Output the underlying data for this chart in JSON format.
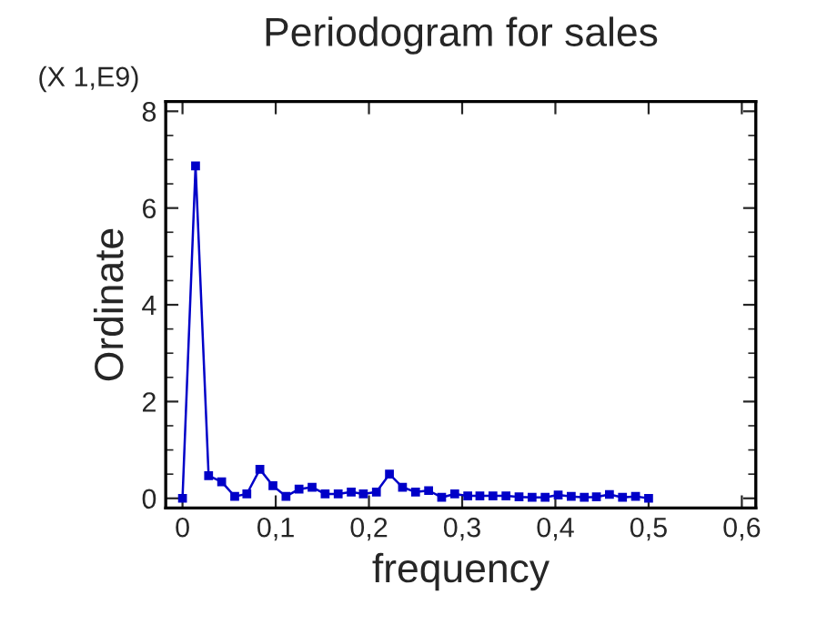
{
  "chart_data": {
    "type": "line",
    "title": "Periodogram for sales",
    "xlabel": "frequency",
    "ylabel": "Ordinate",
    "annotations": [
      "(X 1,E9)"
    ],
    "x": [
      0,
      0.014,
      0.028,
      0.042,
      0.056,
      0.069,
      0.083,
      0.097,
      0.111,
      0.125,
      0.139,
      0.153,
      0.167,
      0.181,
      0.194,
      0.208,
      0.222,
      0.236,
      0.25,
      0.264,
      0.278,
      0.292,
      0.306,
      0.319,
      0.333,
      0.347,
      0.361,
      0.375,
      0.389,
      0.403,
      0.417,
      0.431,
      0.444,
      0.458,
      0.472,
      0.486,
      0.5
    ],
    "series": [
      {
        "color": "#0000c8",
        "values": [
          0,
          6.87,
          0.47,
          0.34,
          0.04,
          0.09,
          0.6,
          0.26,
          0.04,
          0.19,
          0.23,
          0.09,
          0.09,
          0.13,
          0.09,
          0.13,
          0.5,
          0.23,
          0.13,
          0.16,
          0.02,
          0.09,
          0.05,
          0.05,
          0.05,
          0.05,
          0.03,
          0.02,
          0.02,
          0.07,
          0.04,
          0.02,
          0.03,
          0.08,
          0.02,
          0.04,
          0.0
        ]
      }
    ],
    "xlim": [
      -0.018,
      0.615
    ],
    "ylim": [
      -0.2,
      8.2
    ],
    "xticks": [
      0,
      {
        "value": 0.1,
        "label": "0,1"
      },
      {
        "value": 0.2,
        "label": "0,2"
      },
      {
        "value": 0.3,
        "label": "0,3"
      },
      {
        "value": 0.4,
        "label": "0,4"
      },
      {
        "value": 0.5,
        "label": "0,5"
      },
      {
        "value": 0.6,
        "label": "0,6"
      }
    ],
    "yticks": [
      0,
      2,
      4,
      6,
      8
    ],
    "grid": false,
    "legend": false,
    "marker": "square",
    "line_style": "solid"
  }
}
